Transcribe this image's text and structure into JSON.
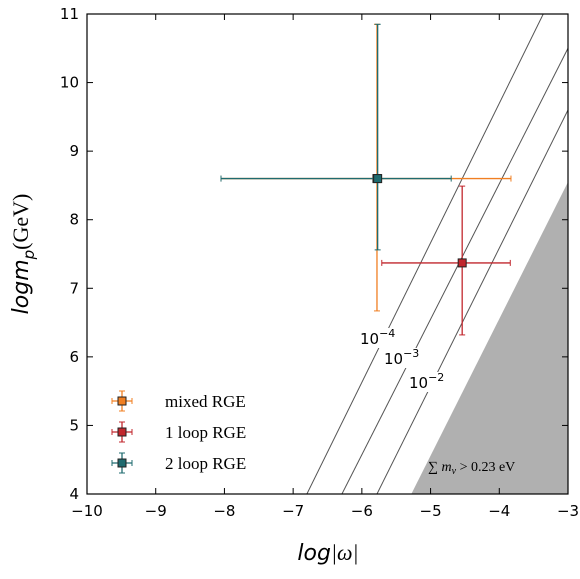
{
  "chart_data": {
    "type": "errorbar",
    "xlabel": {
      "prefix": "log",
      "body": "|ω|"
    },
    "ylabel": {
      "main": "logm",
      "sub": "p",
      "unit": "(GeV)"
    },
    "xlim": [
      -10,
      -3
    ],
    "ylim": [
      4,
      11
    ],
    "xticks": [
      {
        "value": -10,
        "label": "−10"
      },
      {
        "value": -9,
        "label": "−9"
      },
      {
        "value": -8,
        "label": "−8"
      },
      {
        "value": -7,
        "label": "−7"
      },
      {
        "value": -6,
        "label": "−6"
      },
      {
        "value": -5,
        "label": "−5"
      },
      {
        "value": -4,
        "label": "−4"
      },
      {
        "value": -3,
        "label": "−3"
      }
    ],
    "yticks": [
      4,
      5,
      6,
      7,
      8,
      9,
      10,
      11
    ],
    "series": [
      {
        "name": "mixed RGE",
        "color": "#f07f22",
        "x": -5.78,
        "y": 8.6,
        "xmin": -8.05,
        "xmax": -3.83,
        "ymin": 6.67,
        "ymax": 10.85
      },
      {
        "name": "1 loop RGE",
        "color": "#c1272d",
        "x": -4.54,
        "y": 7.37,
        "xmin": -5.71,
        "xmax": -3.84,
        "ymin": 6.32,
        "ymax": 8.49
      },
      {
        "name": "2 loop RGE",
        "color": "#1f6b6f",
        "x": -5.77,
        "y": 8.6,
        "xmin": -8.05,
        "xmax": -4.7,
        "ymin": 7.56,
        "ymax": 10.85
      }
    ],
    "contours": [
      {
        "base": "10",
        "exp": "−4",
        "x": [
          -6.8,
          -3.36
        ],
        "y": [
          4,
          11
        ]
      },
      {
        "base": "10",
        "exp": "−3",
        "x": [
          -6.29,
          -3
        ],
        "y": [
          4,
          10.5
        ]
      },
      {
        "base": "10",
        "exp": "−2",
        "x": [
          -5.78,
          -3
        ],
        "y": [
          4,
          9.6
        ]
      }
    ],
    "excluded_region": {
      "label": {
        "sum": "∑",
        "main": " m",
        "sub": "ν",
        "rest": " > 0.23 eV"
      },
      "x": [
        -5.28,
        -3,
        -3
      ],
      "y": [
        4,
        8.55,
        4
      ],
      "color": "#b0b0b0"
    },
    "legend": "lower left"
  }
}
